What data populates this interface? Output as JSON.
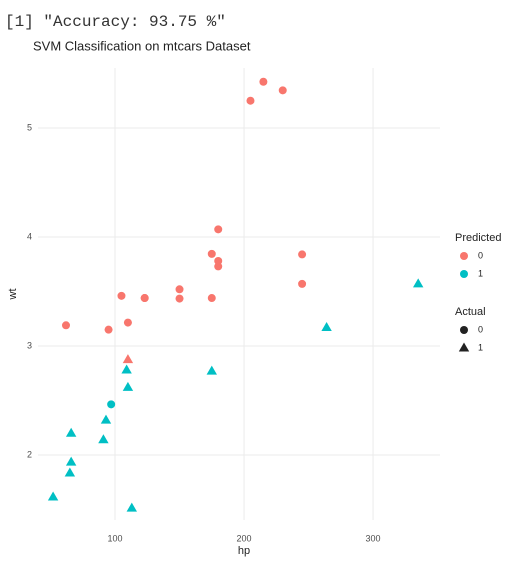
{
  "console_output": "[1] \"Accuracy: 93.75 %\"",
  "chart_data": {
    "type": "scatter",
    "title": "SVM Classification on mtcars Dataset",
    "x_label": "hp",
    "y_label": "wt",
    "x": [
      110,
      110,
      93,
      110,
      175,
      105,
      245,
      62,
      95,
      123,
      123,
      180,
      180,
      180,
      205,
      215,
      230,
      66,
      52,
      65,
      97,
      150,
      150,
      245,
      175,
      66,
      91,
      113,
      264,
      175,
      335,
      109
    ],
    "y": [
      2.62,
      2.875,
      2.32,
      3.215,
      3.44,
      3.46,
      3.57,
      3.19,
      3.15,
      3.44,
      3.44,
      4.07,
      3.73,
      3.78,
      5.25,
      5.424,
      5.345,
      2.2,
      1.615,
      1.835,
      2.465,
      3.52,
      3.435,
      3.84,
      3.845,
      1.935,
      2.14,
      1.513,
      3.17,
      2.77,
      3.57,
      2.78
    ],
    "predicted": [
      "1",
      "0",
      "1",
      "0",
      "0",
      "0",
      "0",
      "0",
      "0",
      "0",
      "0",
      "0",
      "0",
      "0",
      "0",
      "0",
      "0",
      "1",
      "1",
      "1",
      "1",
      "0",
      "0",
      "0",
      "0",
      "1",
      "1",
      "1",
      "1",
      "1",
      "1",
      "1"
    ],
    "actual": [
      "1",
      "1",
      "1",
      "0",
      "0",
      "0",
      "0",
      "0",
      "0",
      "0",
      "0",
      "0",
      "0",
      "0",
      "0",
      "0",
      "0",
      "1",
      "1",
      "1",
      "0",
      "0",
      "0",
      "0",
      "0",
      "1",
      "1",
      "1",
      "1",
      "1",
      "1",
      "1"
    ],
    "xlim": [
      40.3,
      351.9
    ],
    "ylim": [
      1.404,
      5.55
    ],
    "xticks": [
      100,
      200,
      300
    ],
    "yticks": [
      2,
      3,
      4,
      5
    ],
    "grid": true,
    "legends": [
      {
        "title": "Predicted",
        "labels": [
          "0",
          "1"
        ],
        "colors": [
          "#F8766D",
          "#00BFC4"
        ]
      },
      {
        "title": "Actual",
        "labels": [
          "0",
          "1"
        ],
        "shapes": [
          "circle",
          "triangle"
        ]
      }
    ]
  }
}
